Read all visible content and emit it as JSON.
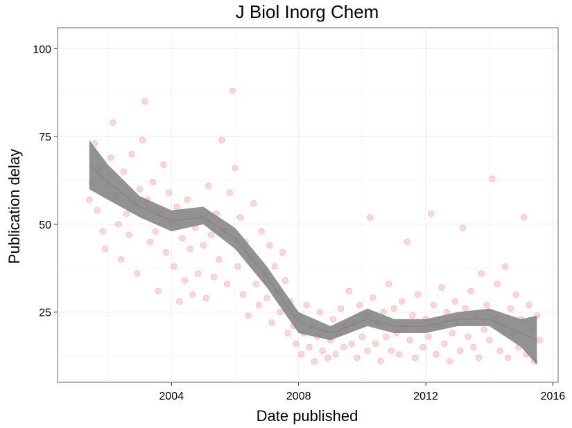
{
  "chart_data": {
    "type": "scatter",
    "title": "J Biol Inorg Chem",
    "xlabel": "Date published",
    "ylabel": "Publication delay",
    "x_axis_type": "date",
    "xlim": [
      "2000-06-01",
      "2016-03-01"
    ],
    "ylim": [
      5,
      106
    ],
    "x_ticks": [
      {
        "value": "2004-01-01",
        "label": "2004"
      },
      {
        "value": "2008-01-01",
        "label": "2008"
      },
      {
        "value": "2012-01-01",
        "label": "2012"
      },
      {
        "value": "2016-01-01",
        "label": "2016"
      }
    ],
    "y_ticks": [
      {
        "value": 25,
        "label": "25"
      },
      {
        "value": 50,
        "label": "50"
      },
      {
        "value": 75,
        "label": "75"
      },
      {
        "value": 100,
        "label": "100"
      }
    ],
    "grid": true,
    "legend": "none",
    "point_color": "#f8766d",
    "smooth_color": "#7f7f7f",
    "points": [
      [
        "2001-06-01",
        57
      ],
      [
        "2001-07-01",
        62
      ],
      [
        "2001-08-01",
        73
      ],
      [
        "2001-09-01",
        54
      ],
      [
        "2001-10-01",
        66
      ],
      [
        "2001-11-01",
        48
      ],
      [
        "2001-12-01",
        43
      ],
      [
        "2002-01-01",
        61
      ],
      [
        "2002-02-01",
        69
      ],
      [
        "2002-03-01",
        79
      ],
      [
        "2002-04-01",
        58
      ],
      [
        "2002-05-01",
        50
      ],
      [
        "2002-06-01",
        40
      ],
      [
        "2002-07-01",
        65
      ],
      [
        "2002-08-01",
        53
      ],
      [
        "2002-09-01",
        47
      ],
      [
        "2002-10-01",
        70
      ],
      [
        "2002-11-01",
        56
      ],
      [
        "2002-12-01",
        36
      ],
      [
        "2003-01-01",
        60
      ],
      [
        "2003-02-01",
        74
      ],
      [
        "2003-03-01",
        85
      ],
      [
        "2003-04-01",
        57
      ],
      [
        "2003-05-01",
        45
      ],
      [
        "2003-06-01",
        62
      ],
      [
        "2003-07-01",
        48
      ],
      [
        "2003-08-01",
        31
      ],
      [
        "2003-09-01",
        53
      ],
      [
        "2003-10-01",
        67
      ],
      [
        "2003-11-01",
        42
      ],
      [
        "2003-12-01",
        59
      ],
      [
        "2004-01-01",
        51
      ],
      [
        "2004-02-01",
        38
      ],
      [
        "2004-03-01",
        55
      ],
      [
        "2004-04-01",
        28
      ],
      [
        "2004-05-01",
        46
      ],
      [
        "2004-06-01",
        34
      ],
      [
        "2004-07-01",
        57
      ],
      [
        "2004-08-01",
        43
      ],
      [
        "2004-09-01",
        30
      ],
      [
        "2004-10-01",
        49
      ],
      [
        "2004-11-01",
        36
      ],
      [
        "2004-12-01",
        52
      ],
      [
        "2005-01-01",
        44
      ],
      [
        "2005-02-01",
        29
      ],
      [
        "2005-03-01",
        61
      ],
      [
        "2005-04-01",
        47
      ],
      [
        "2005-05-01",
        35
      ],
      [
        "2005-06-01",
        53
      ],
      [
        "2005-07-01",
        40
      ],
      [
        "2005-08-01",
        74
      ],
      [
        "2005-09-01",
        48
      ],
      [
        "2005-10-01",
        33
      ],
      [
        "2005-11-01",
        59
      ],
      [
        "2005-12-01",
        88
      ],
      [
        "2006-01-01",
        66
      ],
      [
        "2006-02-01",
        38
      ],
      [
        "2006-03-01",
        52
      ],
      [
        "2006-04-01",
        30
      ],
      [
        "2006-05-01",
        45
      ],
      [
        "2006-06-01",
        24
      ],
      [
        "2006-07-01",
        41
      ],
      [
        "2006-08-01",
        56
      ],
      [
        "2006-09-01",
        33
      ],
      [
        "2006-10-01",
        27
      ],
      [
        "2006-11-01",
        48
      ],
      [
        "2006-12-01",
        36
      ],
      [
        "2007-01-01",
        29
      ],
      [
        "2007-02-01",
        44
      ],
      [
        "2007-03-01",
        22
      ],
      [
        "2007-04-01",
        38
      ],
      [
        "2007-05-01",
        31
      ],
      [
        "2007-06-01",
        25
      ],
      [
        "2007-07-01",
        42
      ],
      [
        "2007-08-01",
        34
      ],
      [
        "2007-09-01",
        19
      ],
      [
        "2007-10-01",
        28
      ],
      [
        "2007-11-01",
        21
      ],
      [
        "2007-12-01",
        16
      ],
      [
        "2008-01-01",
        24
      ],
      [
        "2008-02-01",
        13
      ],
      [
        "2008-03-01",
        19
      ],
      [
        "2008-04-01",
        27
      ],
      [
        "2008-05-01",
        15
      ],
      [
        "2008-06-01",
        21
      ],
      [
        "2008-07-01",
        11
      ],
      [
        "2008-08-01",
        18
      ],
      [
        "2008-09-01",
        25
      ],
      [
        "2008-10-01",
        14
      ],
      [
        "2008-11-01",
        20
      ],
      [
        "2008-12-01",
        12
      ],
      [
        "2009-01-01",
        17
      ],
      [
        "2009-02-01",
        23
      ],
      [
        "2009-03-01",
        13
      ],
      [
        "2009-04-01",
        19
      ],
      [
        "2009-05-01",
        26
      ],
      [
        "2009-06-01",
        15
      ],
      [
        "2009-07-01",
        21
      ],
      [
        "2009-08-01",
        31
      ],
      [
        "2009-09-01",
        16
      ],
      [
        "2009-10-01",
        22
      ],
      [
        "2009-11-01",
        12
      ],
      [
        "2009-12-01",
        27
      ],
      [
        "2010-01-01",
        18
      ],
      [
        "2010-02-01",
        24
      ],
      [
        "2010-03-01",
        14
      ],
      [
        "2010-04-01",
        52
      ],
      [
        "2010-05-01",
        29
      ],
      [
        "2010-06-01",
        16
      ],
      [
        "2010-07-01",
        22
      ],
      [
        "2010-08-01",
        11
      ],
      [
        "2010-09-01",
        25
      ],
      [
        "2010-10-01",
        18
      ],
      [
        "2010-11-01",
        33
      ],
      [
        "2010-12-01",
        14
      ],
      [
        "2011-01-01",
        26
      ],
      [
        "2011-02-01",
        19
      ],
      [
        "2011-03-01",
        13
      ],
      [
        "2011-04-01",
        28
      ],
      [
        "2011-05-01",
        21
      ],
      [
        "2011-06-01",
        45
      ],
      [
        "2011-07-01",
        17
      ],
      [
        "2011-08-01",
        24
      ],
      [
        "2011-09-01",
        12
      ],
      [
        "2011-10-01",
        30
      ],
      [
        "2011-11-01",
        20
      ],
      [
        "2011-12-01",
        15
      ],
      [
        "2012-01-01",
        23
      ],
      [
        "2012-02-01",
        18
      ],
      [
        "2012-03-01",
        53
      ],
      [
        "2012-04-01",
        27
      ],
      [
        "2012-05-01",
        13
      ],
      [
        "2012-06-01",
        21
      ],
      [
        "2012-07-01",
        32
      ],
      [
        "2012-08-01",
        16
      ],
      [
        "2012-09-01",
        25
      ],
      [
        "2012-10-01",
        11
      ],
      [
        "2012-11-01",
        19
      ],
      [
        "2012-12-01",
        28
      ],
      [
        "2013-01-01",
        22
      ],
      [
        "2013-02-01",
        14
      ],
      [
        "2013-03-01",
        49
      ],
      [
        "2013-04-01",
        26
      ],
      [
        "2013-05-01",
        18
      ],
      [
        "2013-06-01",
        31
      ],
      [
        "2013-07-01",
        15
      ],
      [
        "2013-08-01",
        24
      ],
      [
        "2013-09-01",
        12
      ],
      [
        "2013-10-01",
        36
      ],
      [
        "2013-11-01",
        20
      ],
      [
        "2013-12-01",
        27
      ],
      [
        "2014-01-01",
        17
      ],
      [
        "2014-02-01",
        63
      ],
      [
        "2014-03-01",
        23
      ],
      [
        "2014-04-01",
        33
      ],
      [
        "2014-05-01",
        14
      ],
      [
        "2014-06-01",
        21
      ],
      [
        "2014-07-01",
        38
      ],
      [
        "2014-08-01",
        12
      ],
      [
        "2014-09-01",
        26
      ],
      [
        "2014-10-01",
        19
      ],
      [
        "2014-11-01",
        30
      ],
      [
        "2014-12-01",
        15
      ],
      [
        "2015-01-01",
        23
      ],
      [
        "2015-02-01",
        52
      ],
      [
        "2015-03-01",
        13
      ],
      [
        "2015-04-01",
        27
      ],
      [
        "2015-05-01",
        20
      ],
      [
        "2015-06-01",
        11
      ],
      [
        "2015-07-01",
        24
      ],
      [
        "2015-08-01",
        17
      ]
    ],
    "smooth_fit": [
      {
        "x": "2001-06-01",
        "y": 67,
        "ymin": 60,
        "ymax": 74
      },
      {
        "x": "2002-01-01",
        "y": 62,
        "ymin": 57,
        "ymax": 67
      },
      {
        "x": "2003-01-01",
        "y": 55,
        "ymin": 52,
        "ymax": 58
      },
      {
        "x": "2004-01-01",
        "y": 51,
        "ymin": 48,
        "ymax": 54
      },
      {
        "x": "2005-01-01",
        "y": 52,
        "ymin": 50,
        "ymax": 55
      },
      {
        "x": "2006-01-01",
        "y": 46,
        "ymin": 43,
        "ymax": 49
      },
      {
        "x": "2007-01-01",
        "y": 35,
        "ymin": 32,
        "ymax": 38
      },
      {
        "x": "2008-01-01",
        "y": 22,
        "ymin": 19,
        "ymax": 25
      },
      {
        "x": "2009-01-01",
        "y": 19,
        "ymin": 17,
        "ymax": 21
      },
      {
        "x": "2010-03-01",
        "y": 23,
        "ymin": 21,
        "ymax": 26
      },
      {
        "x": "2011-01-01",
        "y": 21,
        "ymin": 19,
        "ymax": 23
      },
      {
        "x": "2012-01-01",
        "y": 21,
        "ymin": 19,
        "ymax": 23
      },
      {
        "x": "2013-01-01",
        "y": 23,
        "ymin": 21,
        "ymax": 25
      },
      {
        "x": "2014-01-01",
        "y": 23,
        "ymin": 21,
        "ymax": 26
      },
      {
        "x": "2015-01-01",
        "y": 19,
        "ymin": 15,
        "ymax": 23
      },
      {
        "x": "2015-07-01",
        "y": 17,
        "ymin": 10,
        "ymax": 24
      }
    ]
  }
}
